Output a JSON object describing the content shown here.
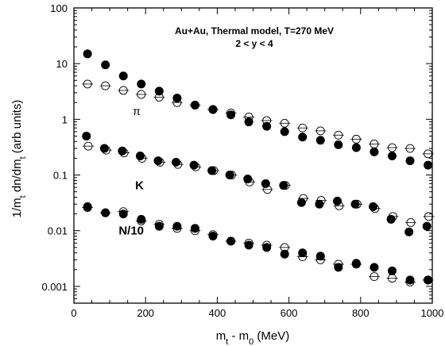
{
  "chart_data": {
    "type": "scatter",
    "title_line1": "Au+Au, Thermal model, T=270 MeV",
    "title_line2": "2 < y < 4",
    "xlabel": "m_t - m_0 (MeV)",
    "ylabel": "1/m_t dn/dm_t (arb units)",
    "xlim": [
      0,
      1000
    ],
    "ylim": [
      0.0005,
      100
    ],
    "yscale": "log",
    "x_ticks": [
      0,
      200,
      400,
      600,
      800,
      1000
    ],
    "x_tick_labels": [
      "0",
      "200",
      "400",
      "600",
      "800",
      "1000"
    ],
    "y_ticks": [
      0.001,
      0.01,
      0.1,
      1,
      10,
      100
    ],
    "y_tick_labels": [
      "0.001",
      "0.01",
      "0.1",
      "1",
      "10",
      "100"
    ],
    "series": [
      {
        "label": "π",
        "label_x": 175,
        "label_y": 1.2,
        "filled": {
          "x": [
            38,
            88,
            138,
            188,
            238,
            288,
            338,
            388,
            438,
            488,
            538,
            588,
            638,
            688,
            738,
            788,
            838,
            888,
            938,
            988
          ],
          "y": [
            15,
            9.5,
            6,
            4.3,
            3.2,
            2.4,
            1.8,
            1.5,
            1.2,
            0.9,
            0.75,
            0.6,
            0.48,
            0.42,
            0.35,
            0.31,
            0.26,
            0.22,
            0.18,
            0.15
          ]
        },
        "open": {
          "x": [
            38,
            88,
            138,
            188,
            238,
            288,
            338,
            388,
            438,
            488,
            538,
            588,
            638,
            688,
            738,
            788,
            838,
            888,
            938,
            988
          ],
          "y": [
            4.3,
            4.0,
            3.3,
            2.8,
            2.5,
            2.0,
            1.8,
            1.5,
            1.3,
            1.1,
            0.95,
            0.85,
            0.7,
            0.62,
            0.52,
            0.44,
            0.36,
            0.31,
            0.3,
            0.24
          ]
        }
      },
      {
        "label": "K",
        "label_x": 183,
        "label_y": 0.055,
        "filled": {
          "x": [
            35,
            85,
            135,
            185,
            235,
            285,
            335,
            385,
            435,
            485,
            535,
            585,
            635,
            685,
            735,
            785,
            835,
            885,
            935,
            985
          ],
          "y": [
            0.5,
            0.3,
            0.27,
            0.22,
            0.18,
            0.17,
            0.15,
            0.12,
            0.1,
            0.085,
            0.07,
            0.065,
            0.032,
            0.03,
            0.034,
            0.03,
            0.027,
            0.016,
            0.0095,
            0.012
          ]
        },
        "open": {
          "x": [
            40,
            90,
            140,
            190,
            240,
            290,
            340,
            390,
            440,
            490,
            540,
            590,
            640,
            690,
            740,
            790,
            840,
            890,
            940,
            990
          ],
          "y": [
            0.33,
            0.28,
            0.25,
            0.2,
            0.17,
            0.155,
            0.14,
            0.12,
            0.1,
            0.075,
            0.055,
            0.065,
            0.038,
            0.035,
            0.028,
            0.03,
            0.025,
            0.018,
            0.014,
            0.018
          ]
        }
      },
      {
        "label": "N/10",
        "label_x": 160,
        "label_y": 0.0085,
        "filled": {
          "x": [
            38,
            88,
            138,
            188,
            238,
            288,
            338,
            388,
            438,
            488,
            538,
            588,
            638,
            688,
            738,
            788,
            838,
            888,
            938,
            988
          ],
          "y": [
            0.027,
            0.021,
            0.02,
            0.016,
            0.012,
            0.012,
            0.011,
            0.008,
            0.0065,
            0.0055,
            0.005,
            0.0038,
            0.004,
            0.0035,
            0.0022,
            0.0026,
            0.0022,
            0.0019,
            0.0013,
            0.0013
          ]
        },
        "open": {
          "x": [
            38,
            88,
            138,
            188,
            238,
            288,
            338,
            388,
            438,
            488,
            538,
            588,
            638,
            688,
            738,
            788,
            838,
            888,
            938,
            988
          ],
          "y": [
            0.026,
            0.021,
            0.022,
            0.015,
            0.013,
            0.011,
            0.01,
            0.0085,
            0.0065,
            0.006,
            0.0055,
            0.005,
            0.0034,
            0.003,
            0.0025,
            0.0025,
            0.0015,
            0.0014,
            0.0012,
            0.0013
          ]
        }
      }
    ]
  }
}
